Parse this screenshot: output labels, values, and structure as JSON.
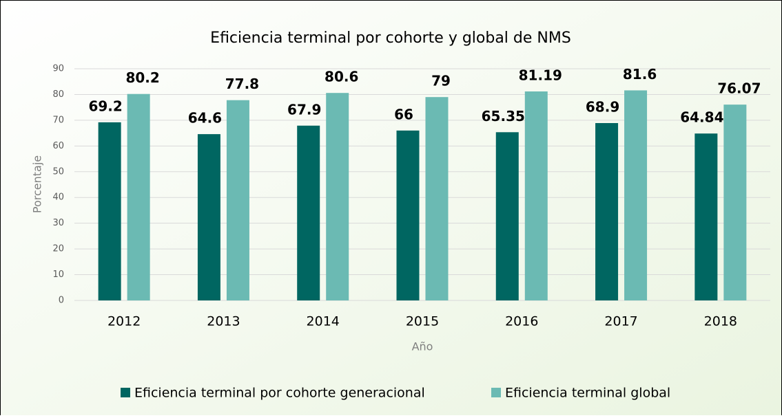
{
  "chart_data": {
    "type": "bar",
    "title": "Eficiencia terminal por cohorte y global de NMS",
    "x_label": "Año",
    "y_label": "Porcentaje",
    "categories": [
      "2012",
      "2013",
      "2014",
      "2015",
      "2016",
      "2017",
      "2018"
    ],
    "series": [
      {
        "name": "Eficiencia terminal por cohorte generacional",
        "color": "#006661",
        "values": [
          69.2,
          64.6,
          67.9,
          66,
          65.35,
          68.9,
          64.84
        ]
      },
      {
        "name": "Eficiencia terminal global",
        "color": "#6bbab3",
        "values": [
          80.2,
          77.8,
          80.6,
          79,
          81.19,
          81.6,
          76.07
        ]
      }
    ],
    "ylim": [
      0,
      90
    ],
    "yticks": [
      0,
      10,
      20,
      30,
      40,
      50,
      60,
      70,
      80,
      90
    ],
    "grid": true,
    "legend": "bottom"
  }
}
